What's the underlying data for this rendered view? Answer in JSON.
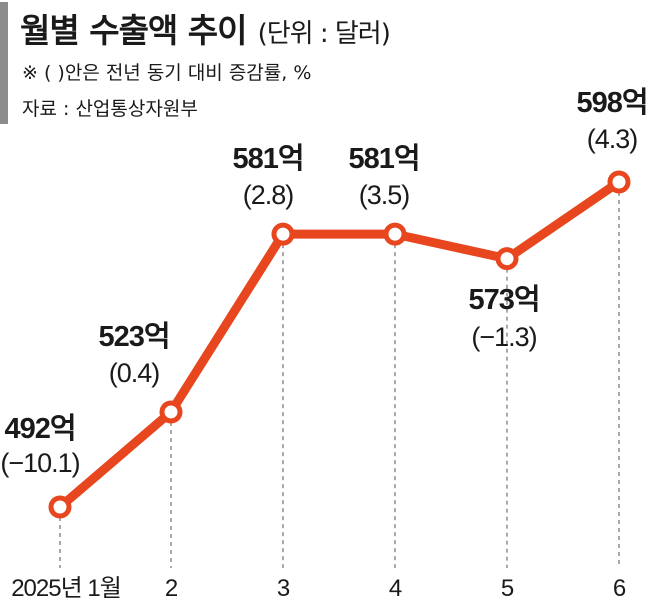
{
  "header": {
    "title": "월별 수출액 추이",
    "unit": "(단위 : 달러)",
    "note": "※ (  )안은 전년 동기 대비 증감률, %",
    "source": "자료 : 산업통상자원부"
  },
  "chart_data": {
    "type": "line",
    "categories": [
      "2025년 1월",
      "2",
      "3",
      "4",
      "5",
      "6"
    ],
    "values": [
      492,
      523,
      581,
      581,
      573,
      598
    ],
    "value_labels": [
      "492억",
      "523억",
      "581억",
      "581억",
      "573억",
      "598억"
    ],
    "change_labels": [
      "(−10.1)",
      "(0.4)",
      "(2.8)",
      "(3.5)",
      "(−1.3)",
      "(4.3)"
    ],
    "change_pct": [
      -10.1,
      0.4,
      2.8,
      3.5,
      -1.3,
      4.3
    ],
    "title": "월별 수출액 추이",
    "ylabel": "",
    "xlabel": "",
    "line_color": "#e8461e",
    "grid": false
  }
}
